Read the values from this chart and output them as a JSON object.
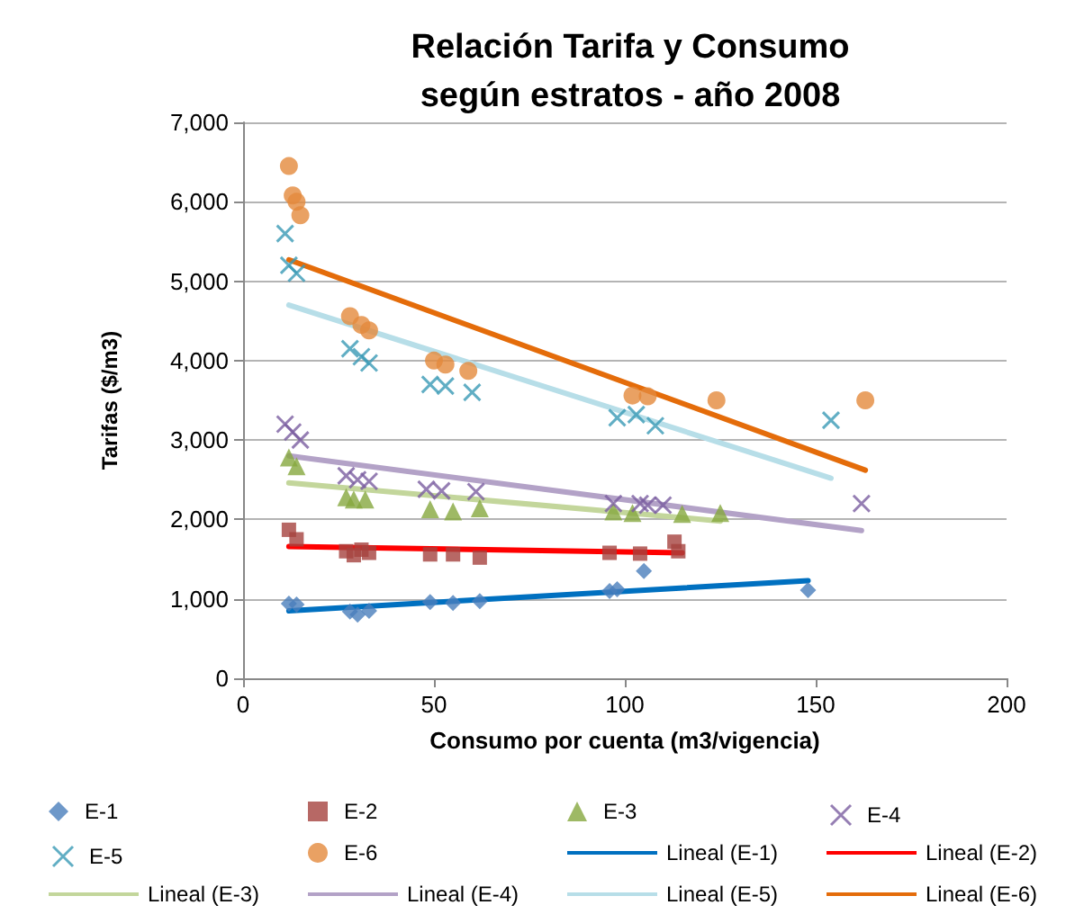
{
  "chart_data": {
    "type": "scatter",
    "title": "Relación Tarifa y Consumo\nsegún estratos - año 2008",
    "xlabel": "Consumo por cuenta (m3/vigencia)",
    "ylabel": "Tarifas ($/m3)",
    "xlim": [
      0,
      200
    ],
    "xticks": [
      0,
      50,
      100,
      150,
      200
    ],
    "ylim": [
      0,
      7000
    ],
    "yticks": [
      0,
      {
        "value": 1000,
        "label": "1,000"
      },
      {
        "value": 2000,
        "label": "2,000"
      },
      {
        "value": 3000,
        "label": "3,000"
      },
      {
        "value": 4000,
        "label": "4,000"
      },
      {
        "value": 5000,
        "label": "5,000"
      },
      {
        "value": 6000,
        "label": "6,000"
      },
      {
        "value": 7000,
        "label": "7,000"
      }
    ],
    "grid": "y",
    "legend": "bottom",
    "series": [
      {
        "name": "E-1",
        "marker": "diamond",
        "color": "#4a7ebb",
        "x": [
          12,
          14,
          28,
          30,
          33,
          49,
          55,
          62,
          96,
          98,
          105,
          148
        ],
        "values": [
          940,
          930,
          840,
          800,
          850,
          960,
          950,
          970,
          1100,
          1120,
          1350,
          1110
        ]
      },
      {
        "name": "E-2",
        "marker": "square",
        "color": "#a5423e",
        "x": [
          12,
          14,
          27,
          29,
          31,
          33,
          49,
          55,
          62,
          96,
          104,
          113,
          114
        ],
        "values": [
          1870,
          1750,
          1600,
          1550,
          1620,
          1580,
          1560,
          1560,
          1520,
          1580,
          1570,
          1720,
          1600
        ]
      },
      {
        "name": "E-3",
        "marker": "triangle",
        "color": "#86a83f",
        "x": [
          12,
          14,
          27,
          29,
          32,
          49,
          55,
          62,
          97,
          102,
          115,
          125
        ],
        "values": [
          2780,
          2670,
          2280,
          2250,
          2250,
          2130,
          2100,
          2140,
          2100,
          2080,
          2070,
          2080
        ]
      },
      {
        "name": "E-4",
        "marker": "cross",
        "color": "#7a5ea0",
        "x": [
          11,
          13,
          15,
          27,
          30,
          33,
          48,
          52,
          61,
          97,
          104,
          106,
          110,
          162
        ],
        "values": [
          3200,
          3100,
          3000,
          2550,
          2500,
          2480,
          2380,
          2360,
          2350,
          2200,
          2200,
          2180,
          2180,
          2200
        ]
      },
      {
        "name": "E-5",
        "marker": "cross",
        "color": "#3a9ab5",
        "x": [
          11,
          12,
          14,
          28,
          31,
          33,
          49,
          53,
          60,
          98,
          103,
          108,
          154
        ],
        "values": [
          5600,
          5200,
          5100,
          4150,
          4050,
          3970,
          3700,
          3680,
          3600,
          3280,
          3320,
          3180,
          3250
        ]
      },
      {
        "name": "E-6",
        "marker": "circle",
        "color": "#e38a3c",
        "x": [
          12,
          13,
          14,
          15,
          28,
          31,
          33,
          50,
          53,
          59,
          102,
          106,
          124,
          163
        ],
        "values": [
          6450,
          6080,
          6000,
          5830,
          4560,
          4450,
          4380,
          4000,
          3950,
          3870,
          3560,
          3550,
          3500,
          3500
        ]
      },
      {
        "name": "Lineal (E-1)",
        "type": "line",
        "marker": "none",
        "color": "#0070c0",
        "x": [
          12,
          148
        ],
        "values": [
          850,
          1230
        ]
      },
      {
        "name": "Lineal (E-2)",
        "type": "line",
        "marker": "none",
        "color": "#ff0000",
        "x": [
          12,
          115
        ],
        "values": [
          1660,
          1580
        ]
      },
      {
        "name": "Lineal (E-3)",
        "type": "line",
        "marker": "none",
        "color": "#c3d69b",
        "x": [
          12,
          125
        ],
        "values": [
          2460,
          1980
        ]
      },
      {
        "name": "Lineal (E-4)",
        "type": "line",
        "marker": "none",
        "color": "#b3a2c7",
        "x": [
          12,
          162
        ],
        "values": [
          2800,
          1860
        ]
      },
      {
        "name": "Lineal (E-5)",
        "type": "line",
        "marker": "none",
        "color": "#b7dee8",
        "x": [
          12,
          154
        ],
        "values": [
          4700,
          2520
        ]
      },
      {
        "name": "Lineal (E-6)",
        "type": "line",
        "marker": "none",
        "color": "#e46c0a",
        "x": [
          12,
          163
        ],
        "values": [
          5270,
          2620
        ]
      }
    ]
  }
}
